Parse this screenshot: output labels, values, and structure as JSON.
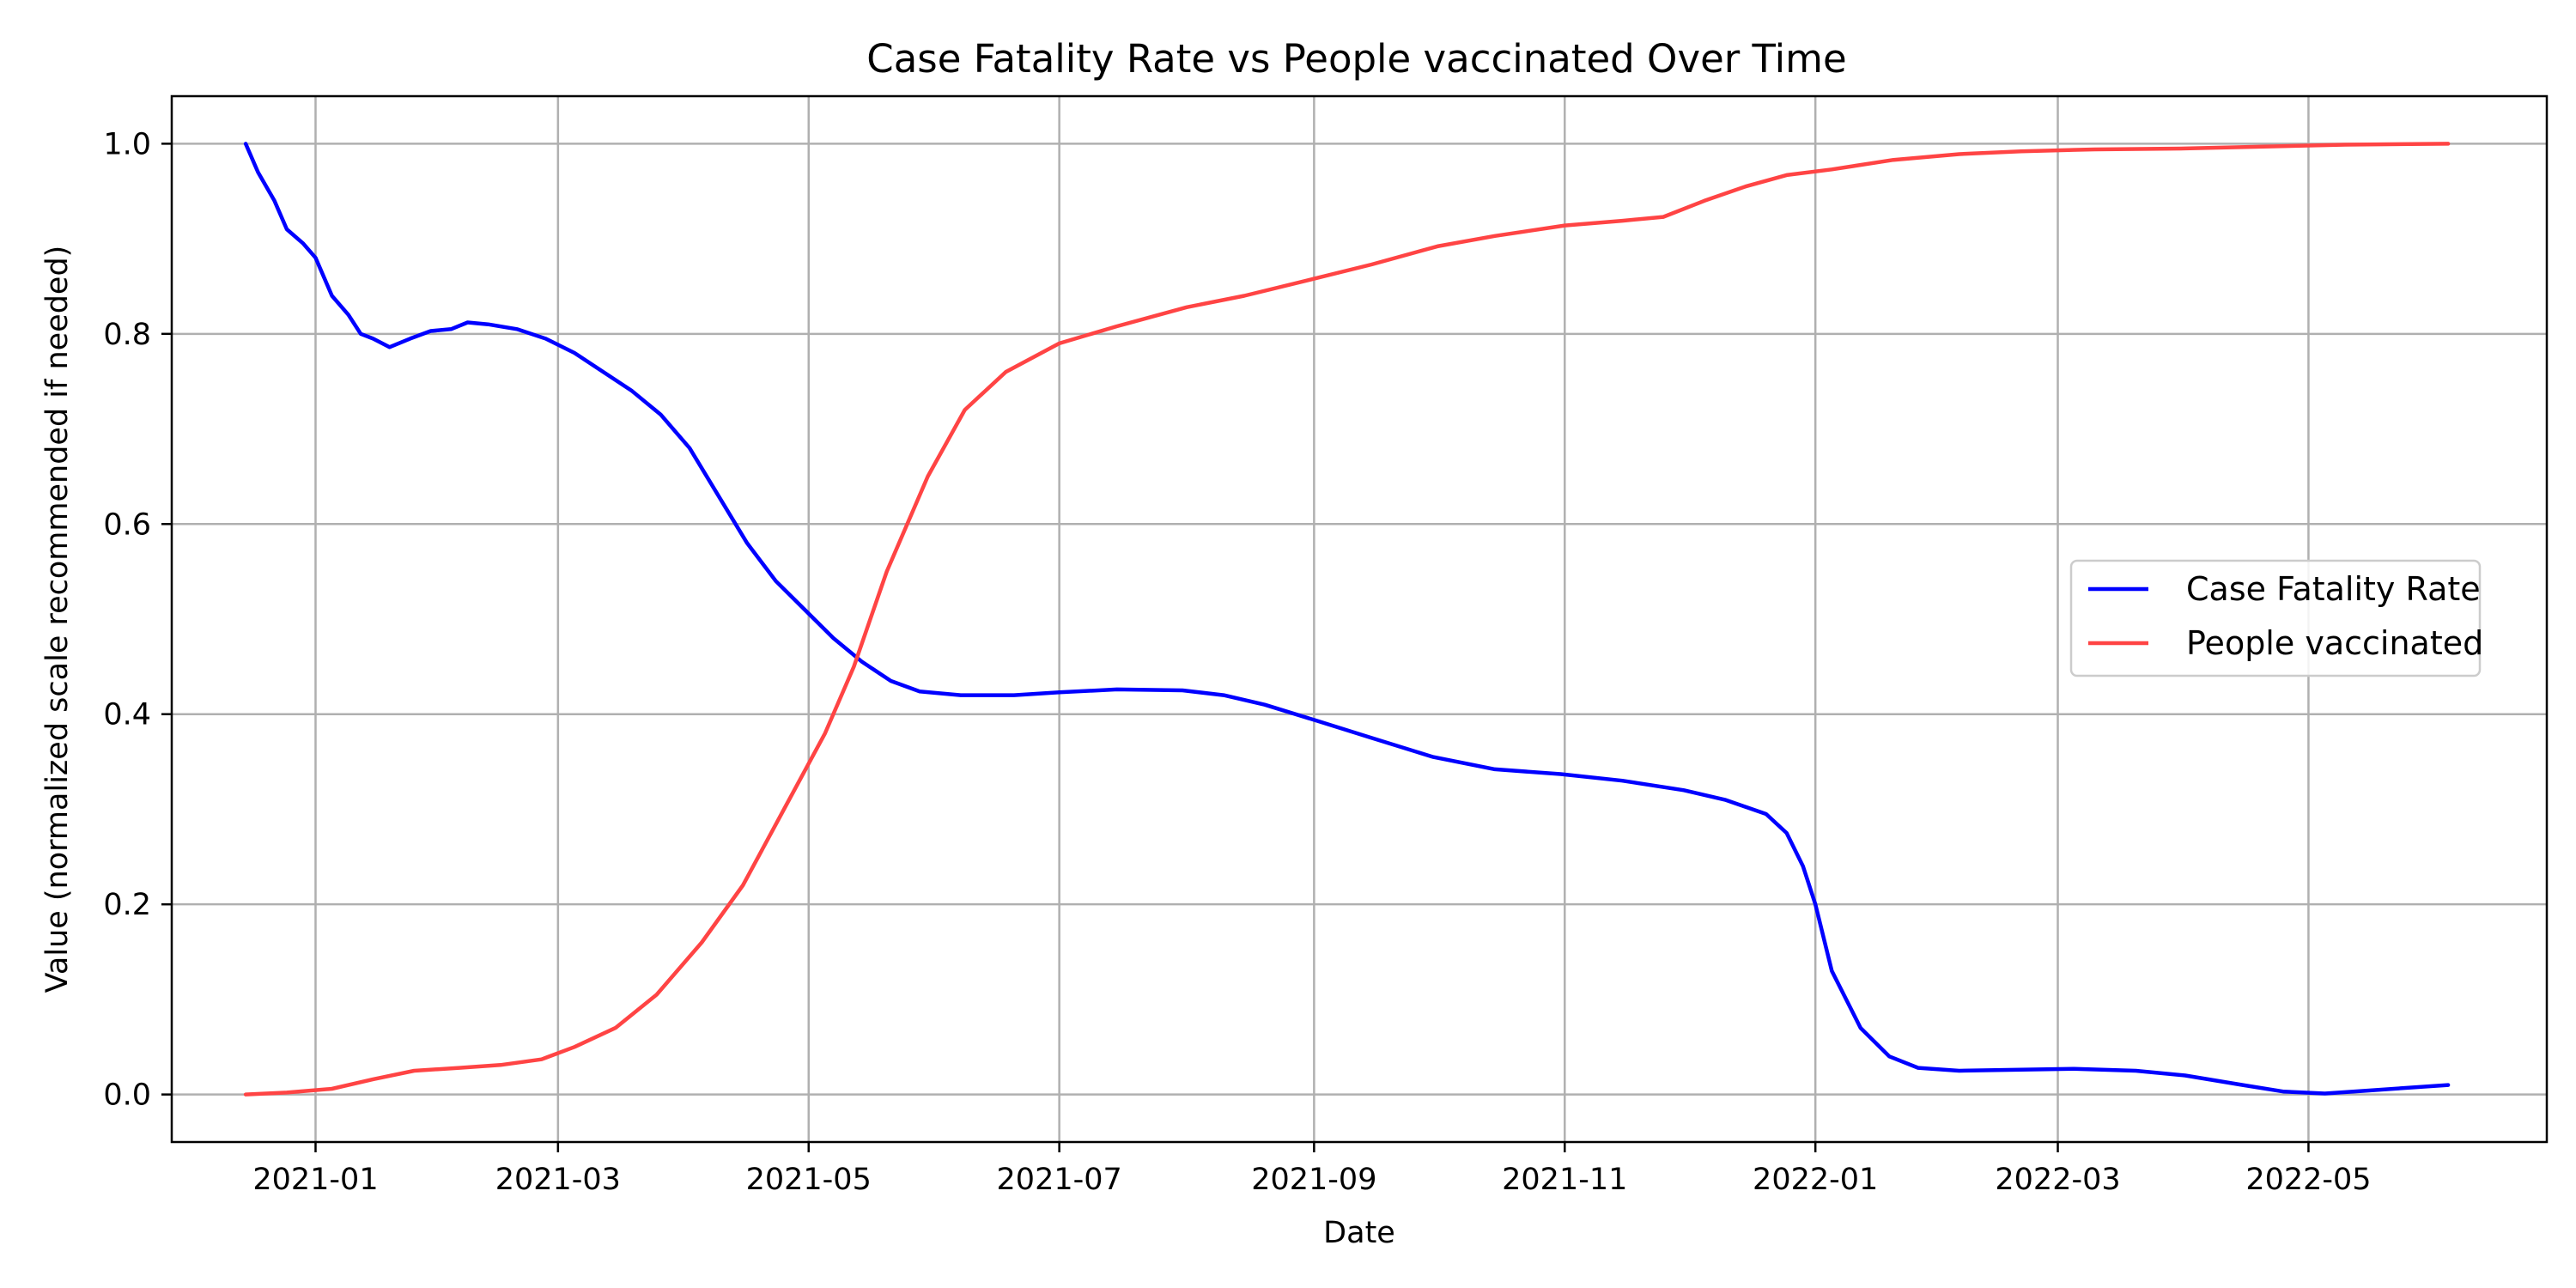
{
  "chart_data": {
    "type": "line",
    "title": "Case Fatality Rate vs People vaccinated Over Time",
    "xlabel": "Date",
    "ylabel": "Value (normalized scale recommended if needed)",
    "x_ticks": [
      "2021-01",
      "2021-03",
      "2021-05",
      "2021-07",
      "2021-09",
      "2021-11",
      "2022-01",
      "2022-03",
      "2022-05"
    ],
    "y_ticks": [
      "0.0",
      "0.2",
      "0.4",
      "0.6",
      "0.8",
      "1.0"
    ],
    "xlim": [
      "2020-11-27",
      "2022-06-28"
    ],
    "ylim": [
      -0.05,
      1.05
    ],
    "grid": true,
    "legend_position": "center-right",
    "series": [
      {
        "name": "Case Fatality Rate",
        "color": "#0000ff",
        "points": [
          [
            "2020-12-15",
            1.0
          ],
          [
            "2020-12-18",
            0.97
          ],
          [
            "2020-12-22",
            0.94
          ],
          [
            "2020-12-25",
            0.91
          ],
          [
            "2020-12-29",
            0.895
          ],
          [
            "2021-01-01",
            0.88
          ],
          [
            "2021-01-05",
            0.84
          ],
          [
            "2021-01-09",
            0.82
          ],
          [
            "2021-01-12",
            0.8
          ],
          [
            "2021-01-15",
            0.795
          ],
          [
            "2021-01-19",
            0.786
          ],
          [
            "2021-01-24",
            0.795
          ],
          [
            "2021-01-29",
            0.803
          ],
          [
            "2021-02-03",
            0.805
          ],
          [
            "2021-02-07",
            0.812
          ],
          [
            "2021-02-12",
            0.81
          ],
          [
            "2021-02-19",
            0.805
          ],
          [
            "2021-02-26",
            0.795
          ],
          [
            "2021-03-05",
            0.78
          ],
          [
            "2021-03-12",
            0.76
          ],
          [
            "2021-03-19",
            0.74
          ],
          [
            "2021-03-26",
            0.715
          ],
          [
            "2021-04-02",
            0.68
          ],
          [
            "2021-04-09",
            0.63
          ],
          [
            "2021-04-16",
            0.58
          ],
          [
            "2021-04-23",
            0.54
          ],
          [
            "2021-04-30",
            0.51
          ],
          [
            "2021-05-07",
            0.48
          ],
          [
            "2021-05-14",
            0.455
          ],
          [
            "2021-05-21",
            0.435
          ],
          [
            "2021-05-28",
            0.424
          ],
          [
            "2021-06-07",
            0.42
          ],
          [
            "2021-06-20",
            0.42
          ],
          [
            "2021-07-01",
            0.423
          ],
          [
            "2021-07-15",
            0.426
          ],
          [
            "2021-07-31",
            0.425
          ],
          [
            "2021-08-10",
            0.42
          ],
          [
            "2021-08-20",
            0.41
          ],
          [
            "2021-09-01",
            0.394
          ],
          [
            "2021-09-15",
            0.375
          ],
          [
            "2021-09-30",
            0.355
          ],
          [
            "2021-10-15",
            0.342
          ],
          [
            "2021-10-31",
            0.337
          ],
          [
            "2021-11-15",
            0.33
          ],
          [
            "2021-11-30",
            0.32
          ],
          [
            "2021-12-10",
            0.31
          ],
          [
            "2021-12-20",
            0.295
          ],
          [
            "2021-12-25",
            0.275
          ],
          [
            "2021-12-29",
            0.24
          ],
          [
            "2022-01-01",
            0.2
          ],
          [
            "2022-01-05",
            0.13
          ],
          [
            "2022-01-12",
            0.07
          ],
          [
            "2022-01-19",
            0.04
          ],
          [
            "2022-01-26",
            0.028
          ],
          [
            "2022-02-05",
            0.025
          ],
          [
            "2022-02-20",
            0.026
          ],
          [
            "2022-03-05",
            0.027
          ],
          [
            "2022-03-20",
            0.025
          ],
          [
            "2022-04-01",
            0.02
          ],
          [
            "2022-04-15",
            0.01
          ],
          [
            "2022-04-25",
            0.003
          ],
          [
            "2022-05-05",
            0.001
          ],
          [
            "2022-05-15",
            0.004
          ],
          [
            "2022-06-04",
            0.01
          ]
        ]
      },
      {
        "name": "People vaccinated",
        "color": "#ff4444",
        "points": [
          [
            "2020-12-15",
            0.0
          ],
          [
            "2020-12-25",
            0.002
          ],
          [
            "2021-01-05",
            0.006
          ],
          [
            "2021-01-15",
            0.016
          ],
          [
            "2021-01-25",
            0.025
          ],
          [
            "2021-02-05",
            0.028
          ],
          [
            "2021-02-15",
            0.031
          ],
          [
            "2021-02-25",
            0.037
          ],
          [
            "2021-03-05",
            0.05
          ],
          [
            "2021-03-15",
            0.07
          ],
          [
            "2021-03-25",
            0.105
          ],
          [
            "2021-04-05",
            0.16
          ],
          [
            "2021-04-15",
            0.22
          ],
          [
            "2021-04-25",
            0.3
          ],
          [
            "2021-05-05",
            0.38
          ],
          [
            "2021-05-12",
            0.45
          ],
          [
            "2021-05-20",
            0.55
          ],
          [
            "2021-05-30",
            0.65
          ],
          [
            "2021-06-08",
            0.72
          ],
          [
            "2021-06-18",
            0.76
          ],
          [
            "2021-07-01",
            0.79
          ],
          [
            "2021-07-15",
            0.808
          ],
          [
            "2021-08-01",
            0.828
          ],
          [
            "2021-08-15",
            0.84
          ],
          [
            "2021-09-01",
            0.858
          ],
          [
            "2021-09-15",
            0.873
          ],
          [
            "2021-10-01",
            0.892
          ],
          [
            "2021-10-15",
            0.903
          ],
          [
            "2021-11-01",
            0.914
          ],
          [
            "2021-11-15",
            0.919
          ],
          [
            "2021-11-25",
            0.923
          ],
          [
            "2021-12-05",
            0.94
          ],
          [
            "2021-12-15",
            0.955
          ],
          [
            "2021-12-25",
            0.967
          ],
          [
            "2022-01-05",
            0.973
          ],
          [
            "2022-01-20",
            0.983
          ],
          [
            "2022-02-05",
            0.989
          ],
          [
            "2022-02-20",
            0.992
          ],
          [
            "2022-03-10",
            0.994
          ],
          [
            "2022-04-01",
            0.995
          ],
          [
            "2022-04-20",
            0.997
          ],
          [
            "2022-05-10",
            0.999
          ],
          [
            "2022-06-04",
            1.0
          ]
        ]
      }
    ]
  }
}
